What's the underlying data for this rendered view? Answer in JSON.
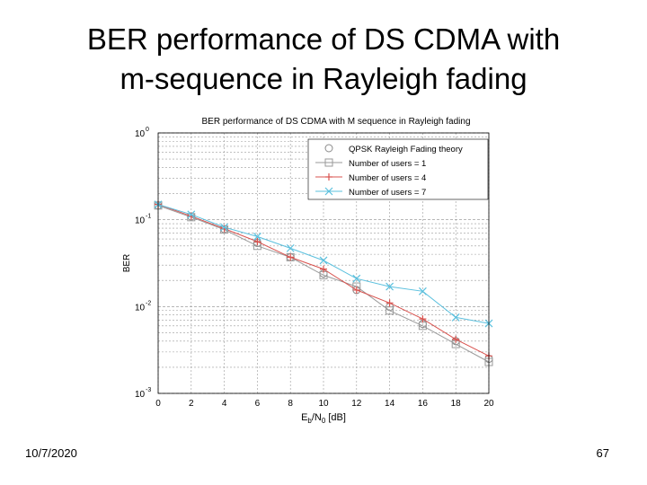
{
  "slide": {
    "title_line1": "BER performance of DS CDMA with",
    "title_line2": "m-sequence in Rayleigh fading",
    "date": "10/7/2020",
    "page_number": "67"
  },
  "chart_data": {
    "type": "line",
    "title": "BER performance of DS CDMA with M sequence in Rayleigh fading",
    "xlabel": "Eb/N0 [dB]",
    "ylabel": "BER",
    "xlim": [
      0,
      20
    ],
    "ylim": [
      0.001,
      1
    ],
    "yscale": "log",
    "x_ticks": [
      "0",
      "2",
      "4",
      "6",
      "8",
      "10",
      "12",
      "14",
      "16",
      "18",
      "20"
    ],
    "y_ticks": [
      {
        "base": "10",
        "exp": "0"
      },
      {
        "base": "10",
        "exp": "-1"
      },
      {
        "base": "10",
        "exp": "-2"
      },
      {
        "base": "10",
        "exp": "-3"
      }
    ],
    "grid": true,
    "legend_position": "top-right",
    "series": [
      {
        "name": "QPSK Rayleigh Fading theory",
        "marker": "circle",
        "line": "none",
        "color": "#8a8a8a",
        "x": [
          0,
          2,
          4,
          6,
          8,
          10,
          12,
          14,
          16,
          18,
          20
        ],
        "y": [
          0.146,
          0.109,
          0.078,
          0.054,
          0.037,
          0.024,
          0.0155,
          0.0099,
          0.0063,
          0.004,
          0.0025
        ]
      },
      {
        "name": "Number of users = 1",
        "marker": "square",
        "line": "solid",
        "color": "#9a9a9a",
        "x": [
          0,
          2,
          4,
          6,
          8,
          10,
          12,
          14,
          16,
          18,
          20
        ],
        "y": [
          0.146,
          0.107,
          0.077,
          0.05,
          0.037,
          0.023,
          0.017,
          0.009,
          0.006,
          0.0037,
          0.0023
        ]
      },
      {
        "name": "Number of users = 4",
        "marker": "plus",
        "line": "solid",
        "color": "#d9534f",
        "x": [
          0,
          2,
          4,
          6,
          8,
          10,
          12,
          14,
          16,
          18,
          20
        ],
        "y": [
          0.15,
          0.11,
          0.079,
          0.056,
          0.037,
          0.027,
          0.0155,
          0.011,
          0.0072,
          0.0042,
          0.0027
        ]
      },
      {
        "name": "Number of users = 7",
        "marker": "x",
        "line": "solid",
        "color": "#5bc0de",
        "x": [
          0,
          2,
          4,
          6,
          8,
          10,
          12,
          14,
          16,
          18,
          20
        ],
        "y": [
          0.15,
          0.115,
          0.082,
          0.064,
          0.047,
          0.034,
          0.021,
          0.017,
          0.015,
          0.0075,
          0.0064
        ]
      }
    ]
  }
}
